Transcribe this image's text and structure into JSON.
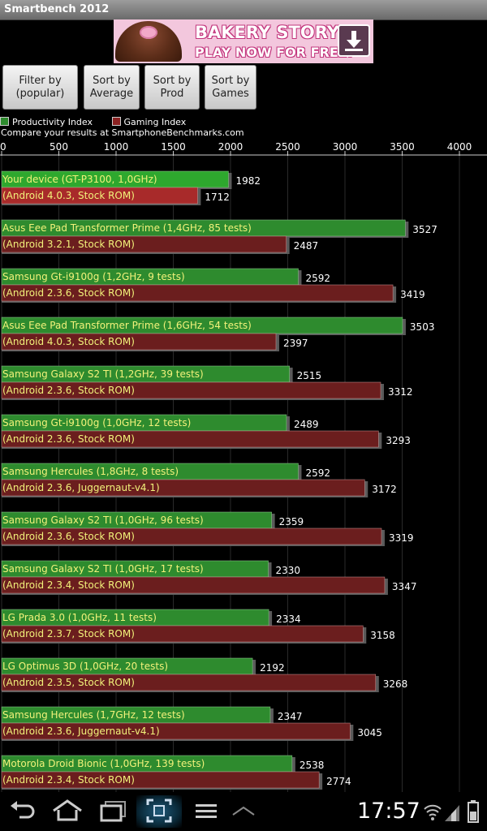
{
  "app_title": "Smartbench 2012",
  "ad": {
    "line1": "BAKERY STORY",
    "line2": "PLAY NOW FOR FREE!"
  },
  "buttons": [
    {
      "label": "Filter by\n(popular)"
    },
    {
      "label": "Sort by\nAverage"
    },
    {
      "label": "Sort by\nProd"
    },
    {
      "label": "Sort by\nGames"
    }
  ],
  "legend": {
    "productivity": "Productivity Index",
    "gaming": "Gaming Index"
  },
  "compare_note": "Compare your results at SmartphoneBenchmarks.com",
  "status": {
    "time": "17:57"
  },
  "chart_data": {
    "type": "bar",
    "orientation": "horizontal",
    "xlim": [
      0,
      4250
    ],
    "x_ticks": [
      0,
      500,
      1000,
      1500,
      2000,
      2500,
      3000,
      3500,
      4000
    ],
    "colors": {
      "productivity": "#2e8b2e",
      "gaming": "#6b1e1e",
      "gaming_highlight": "#a82a2a",
      "productivity_highlight": "#2ea82e"
    },
    "series": [
      {
        "name": "Productivity Index"
      },
      {
        "name": "Gaming Index"
      }
    ],
    "devices": [
      {
        "label1": "Your device (GT-P3100, 1,0GHz)",
        "label2": "(Android 4.0.3, Stock ROM)",
        "prod": 1982,
        "game": 1712,
        "highlight": true
      },
      {
        "label1": "Asus Eee Pad Transformer Prime (1,4GHz, 85 tests)",
        "label2": "(Android 3.2.1, Stock ROM)",
        "prod": 3527,
        "game": 2487
      },
      {
        "label1": "Samsung Gt-i9100g (1,2GHz, 9 tests)",
        "label2": "(Android 2.3.6, Stock ROM)",
        "prod": 2592,
        "game": 3419
      },
      {
        "label1": "Asus Eee Pad Transformer Prime (1,6GHz, 54 tests)",
        "label2": "(Android 4.0.3, Stock ROM)",
        "prod": 3503,
        "game": 2397
      },
      {
        "label1": "Samsung Galaxy S2 TI (1,2GHz, 39 tests)",
        "label2": "(Android 2.3.6, Stock ROM)",
        "prod": 2515,
        "game": 3312
      },
      {
        "label1": "Samsung Gt-i9100g (1,0GHz, 12 tests)",
        "label2": "(Android 2.3.6, Stock ROM)",
        "prod": 2489,
        "game": 3293
      },
      {
        "label1": "Samsung Hercules (1,8GHz, 8 tests)",
        "label2": "(Android 2.3.6, Juggernaut-v4.1)",
        "prod": 2592,
        "game": 3172
      },
      {
        "label1": "Samsung Galaxy S2 TI (1,0GHz, 96 tests)",
        "label2": "(Android 2.3.6, Stock ROM)",
        "prod": 2359,
        "game": 3319
      },
      {
        "label1": "Samsung Galaxy S2 TI (1,0GHz, 17 tests)",
        "label2": "(Android 2.3.4, Stock ROM)",
        "prod": 2330,
        "game": 3347
      },
      {
        "label1": "LG Prada 3.0 (1,0GHz, 11 tests)",
        "label2": "(Android 2.3.7, Stock ROM)",
        "prod": 2334,
        "game": 3158
      },
      {
        "label1": "LG Optimus 3D (1,0GHz, 20 tests)",
        "label2": "(Android 2.3.5, Stock ROM)",
        "prod": 2192,
        "game": 3268
      },
      {
        "label1": "Samsung Hercules (1,7GHz, 12 tests)",
        "label2": "(Android 2.3.6, Juggernaut-v4.1)",
        "prod": 2347,
        "game": 3045
      },
      {
        "label1": "Motorola Droid Bionic (1,0GHz, 139 tests)",
        "label2": "(Android 2.3.4, Stock ROM)",
        "prod": 2538,
        "game": 2774
      }
    ]
  }
}
